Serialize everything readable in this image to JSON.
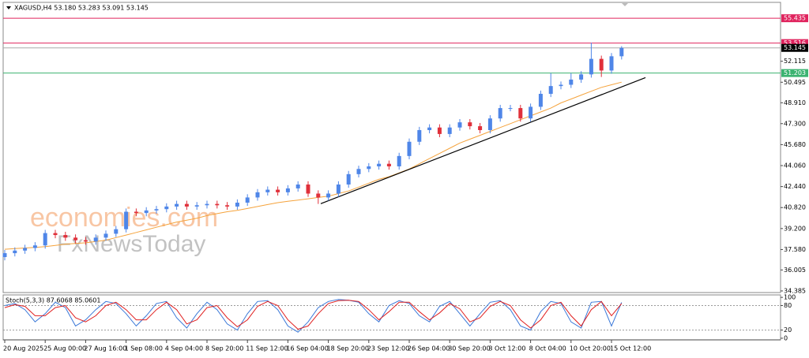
{
  "chart_data": {
    "type": "candlestick",
    "title": "XAGUSD,H4  53.180 53.283 53.091 53.145",
    "watermark": [
      "economies.com",
      "FxNewsToday"
    ],
    "categories": [
      "20 Aug 2025",
      null,
      null,
      null,
      "25 Aug 00:00",
      null,
      null,
      null,
      "27 Aug 16:00",
      null,
      null,
      null,
      "1 Sep 08:00",
      null,
      null,
      null,
      "4 Sep 04:00",
      null,
      null,
      null,
      "8 Sep 20:00",
      null,
      null,
      null,
      "11 Sep 12:00",
      null,
      null,
      null,
      "16 Sep 04:00",
      null,
      null,
      null,
      "18 Sep 20:00",
      null,
      null,
      null,
      "23 Sep 12:00",
      null,
      null,
      null,
      "26 Sep 04:00",
      null,
      null,
      null,
      "30 Sep 20:00",
      null,
      null,
      null,
      "3 Oct 12:00",
      null,
      null,
      null,
      "8 Oct 04:00",
      null,
      null,
      null,
      "10 Oct 20:00",
      null,
      null,
      null,
      "15 Oct 12:00",
      null
    ],
    "open": [
      37.0,
      37.3,
      37.5,
      37.7,
      37.9,
      38.85,
      38.7,
      38.5,
      38.3,
      38.2,
      38.5,
      38.8,
      39.15,
      40.5,
      40.4,
      40.6,
      40.7,
      40.9,
      41.1,
      40.9,
      41.0,
      41.1,
      41.0,
      40.9,
      41.2,
      41.6,
      42.0,
      42.2,
      42.0,
      42.3,
      42.6,
      41.9,
      41.6,
      41.9,
      42.6,
      43.4,
      43.8,
      44.0,
      44.2,
      44.0,
      44.8,
      45.9,
      46.8,
      47.0,
      46.5,
      47.0,
      47.4,
      47.1,
      46.8,
      47.7,
      48.5,
      48.5,
      47.7,
      48.6,
      49.6,
      50.2,
      50.3,
      50.7,
      51.1,
      52.3,
      51.4,
      52.5
    ],
    "high": [
      37.55,
      37.75,
      37.95,
      38.15,
      39.1,
      39.1,
      38.95,
      38.75,
      38.55,
      38.75,
      39.05,
      39.4,
      40.75,
      40.75,
      40.85,
      40.95,
      41.15,
      41.35,
      41.35,
      41.25,
      41.35,
      41.35,
      41.25,
      41.45,
      41.85,
      42.25,
      42.45,
      42.45,
      42.55,
      42.85,
      42.85,
      42.15,
      42.15,
      42.85,
      43.65,
      44.05,
      44.25,
      44.45,
      44.45,
      45.05,
      46.15,
      47.05,
      47.25,
      47.25,
      47.25,
      47.65,
      47.65,
      47.35,
      47.95,
      48.75,
      48.75,
      48.75,
      48.85,
      49.85,
      51.2,
      50.55,
      51.2,
      51.35,
      53.55,
      52.55,
      52.75,
      53.28
    ],
    "low": [
      36.75,
      37.05,
      37.25,
      37.45,
      37.65,
      38.45,
      38.25,
      38.05,
      37.95,
      37.95,
      38.25,
      38.55,
      38.9,
      40.15,
      40.15,
      40.35,
      40.45,
      40.65,
      40.65,
      40.65,
      40.75,
      40.75,
      40.65,
      40.65,
      40.95,
      41.35,
      41.75,
      41.75,
      41.75,
      42.05,
      41.65,
      41.1,
      41.35,
      41.65,
      42.35,
      43.15,
      43.55,
      43.75,
      43.75,
      43.75,
      44.55,
      45.65,
      46.55,
      46.25,
      46.25,
      46.75,
      46.85,
      46.55,
      46.55,
      47.45,
      48.25,
      47.45,
      47.45,
      48.35,
      49.35,
      49.95,
      50.05,
      50.45,
      50.85,
      50.9,
      51.15,
      52.25
    ],
    "close": [
      37.3,
      37.5,
      37.7,
      37.9,
      38.85,
      38.7,
      38.5,
      38.3,
      38.2,
      38.5,
      38.8,
      39.15,
      40.5,
      40.4,
      40.6,
      40.7,
      40.9,
      41.1,
      40.9,
      41.0,
      41.1,
      41.0,
      40.9,
      41.2,
      41.6,
      42.0,
      42.2,
      42.0,
      42.3,
      42.6,
      41.9,
      41.6,
      41.9,
      42.6,
      43.4,
      43.8,
      44.0,
      44.2,
      44.0,
      44.8,
      45.9,
      46.8,
      47.0,
      46.5,
      47.0,
      47.4,
      47.1,
      46.8,
      47.7,
      48.5,
      48.5,
      47.7,
      48.6,
      49.6,
      50.2,
      50.3,
      50.7,
      51.1,
      52.3,
      51.4,
      52.5,
      53.145
    ],
    "up_color": "#4f86e8",
    "down_color": "#e0303a",
    "moving_average": {
      "color": "#f5a33c",
      "values": [
        37.6,
        37.65,
        37.7,
        37.75,
        37.8,
        37.9,
        38.0,
        38.05,
        38.1,
        38.2,
        38.3,
        38.5,
        38.7,
        38.9,
        39.1,
        39.3,
        39.5,
        39.7,
        39.85,
        40.0,
        40.2,
        40.35,
        40.5,
        40.6,
        40.75,
        40.9,
        41.05,
        41.2,
        41.3,
        41.4,
        41.5,
        41.6,
        41.7,
        41.9,
        42.1,
        42.4,
        42.7,
        43.0,
        43.2,
        43.5,
        43.8,
        44.2,
        44.6,
        45.0,
        45.4,
        45.8,
        46.1,
        46.4,
        46.7,
        47.0,
        47.3,
        47.6,
        47.9,
        48.2,
        48.5,
        48.9,
        49.2,
        49.5,
        49.8,
        50.1,
        50.3,
        50.5
      ]
    },
    "trendline": {
      "color": "#000000",
      "x": [
        31.25,
        63.36
      ],
      "y": [
        41.12,
        50.85
      ]
    },
    "levels": [
      {
        "value": 55.435,
        "color": "#e0245e"
      },
      {
        "value": 53.516,
        "color": "#e0245e"
      },
      {
        "value": 51.203,
        "color": "#3cb371"
      }
    ],
    "current_price": 53.145,
    "ylim": [
      34.26,
      56.66
    ],
    "yticks": [
      34.385,
      36.005,
      {
        "value": 37.58,
        "label": "37.580"
      },
      {
        "value": 39.2,
        "label": "39.200"
      },
      {
        "value": 40.82,
        "label": "40.820"
      },
      {
        "value": 42.44,
        "label": "42.440"
      },
      {
        "value": 44.06,
        "label": "44.060"
      },
      {
        "value": 45.68,
        "label": "45.680"
      },
      {
        "value": 47.3,
        "label": "47.300"
      },
      {
        "value": 48.91,
        "label": "48.910"
      },
      50.495,
      52.115
    ],
    "stochastic": {
      "label": "Stoch(5,3,3) 87.6068 85.0601",
      "ylim": [
        -4,
        106
      ],
      "yticks": [
        0,
        20,
        80,
        100
      ],
      "dotted_levels": [
        20,
        80
      ],
      "main": {
        "color": "#3a78d8",
        "values": [
          80,
          85,
          70,
          40,
          60,
          88,
          75,
          30,
          45,
          70,
          90,
          85,
          60,
          30,
          55,
          85,
          90,
          50,
          25,
          60,
          88,
          70,
          35,
          20,
          60,
          90,
          92,
          70,
          30,
          15,
          40,
          75,
          90,
          95,
          93,
          88,
          60,
          40,
          80,
          92,
          85,
          55,
          40,
          78,
          90,
          60,
          30,
          60,
          88,
          92,
          70,
          30,
          20,
          65,
          90,
          85,
          40,
          25,
          88,
          90,
          30,
          87.6068
        ]
      },
      "signal": {
        "color": "#e02020",
        "values": [
          75,
          82,
          78,
          55,
          55,
          75,
          80,
          50,
          40,
          55,
          80,
          88,
          70,
          45,
          45,
          70,
          88,
          70,
          35,
          45,
          75,
          80,
          50,
          28,
          45,
          78,
          90,
          80,
          45,
          22,
          30,
          60,
          85,
          92,
          93,
          90,
          70,
          45,
          65,
          88,
          88,
          65,
          45,
          62,
          85,
          72,
          40,
          50,
          78,
          90,
          80,
          45,
          25,
          45,
          80,
          88,
          55,
          30,
          70,
          90,
          55,
          85.0601
        ]
      }
    }
  }
}
